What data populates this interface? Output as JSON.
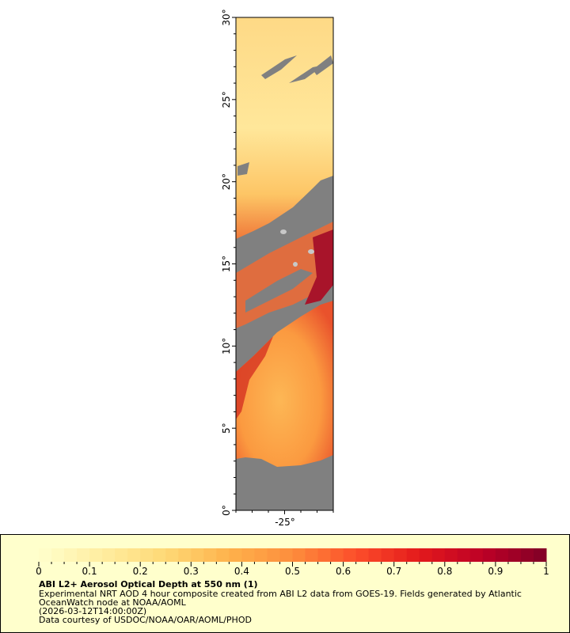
{
  "map": {
    "y_axis": {
      "ticks": [
        "0°",
        "5°",
        "10°",
        "15°",
        "20°",
        "25°",
        "30°"
      ],
      "range": [
        0,
        30
      ]
    },
    "x_axis": {
      "ticks": [
        "-25°"
      ]
    },
    "colors": {
      "no_data": "#808080",
      "land": "#c8c8c8"
    }
  },
  "legend": {
    "colorbar_range": [
      0,
      1
    ],
    "tick_labels": [
      "0",
      "0.1",
      "0.2",
      "0.3",
      "0.4",
      "0.5",
      "0.6",
      "0.7",
      "0.8",
      "0.9",
      "1"
    ],
    "palette": [
      "#ffffcc",
      "#ffeda0",
      "#fed976",
      "#feb24c",
      "#fd8d3c",
      "#fc4e2a",
      "#e31a1c",
      "#bd0026",
      "#800026"
    ],
    "title": "ABI L2+ Aerosol Optical Depth at 550 nm (1)",
    "line1": "Experimental NRT AOD 4 hour composite created from ABI L2 data from GOES-19. Fields generated by Atlantic",
    "line2": "OceanWatch node at NOAA/AOML",
    "line3": "(2026-03-12T14:00:00Z)",
    "line4": "Data courtesy of USDOC/NOAA/OAR/AOML/PHOD",
    "background": "#ffffcc"
  }
}
